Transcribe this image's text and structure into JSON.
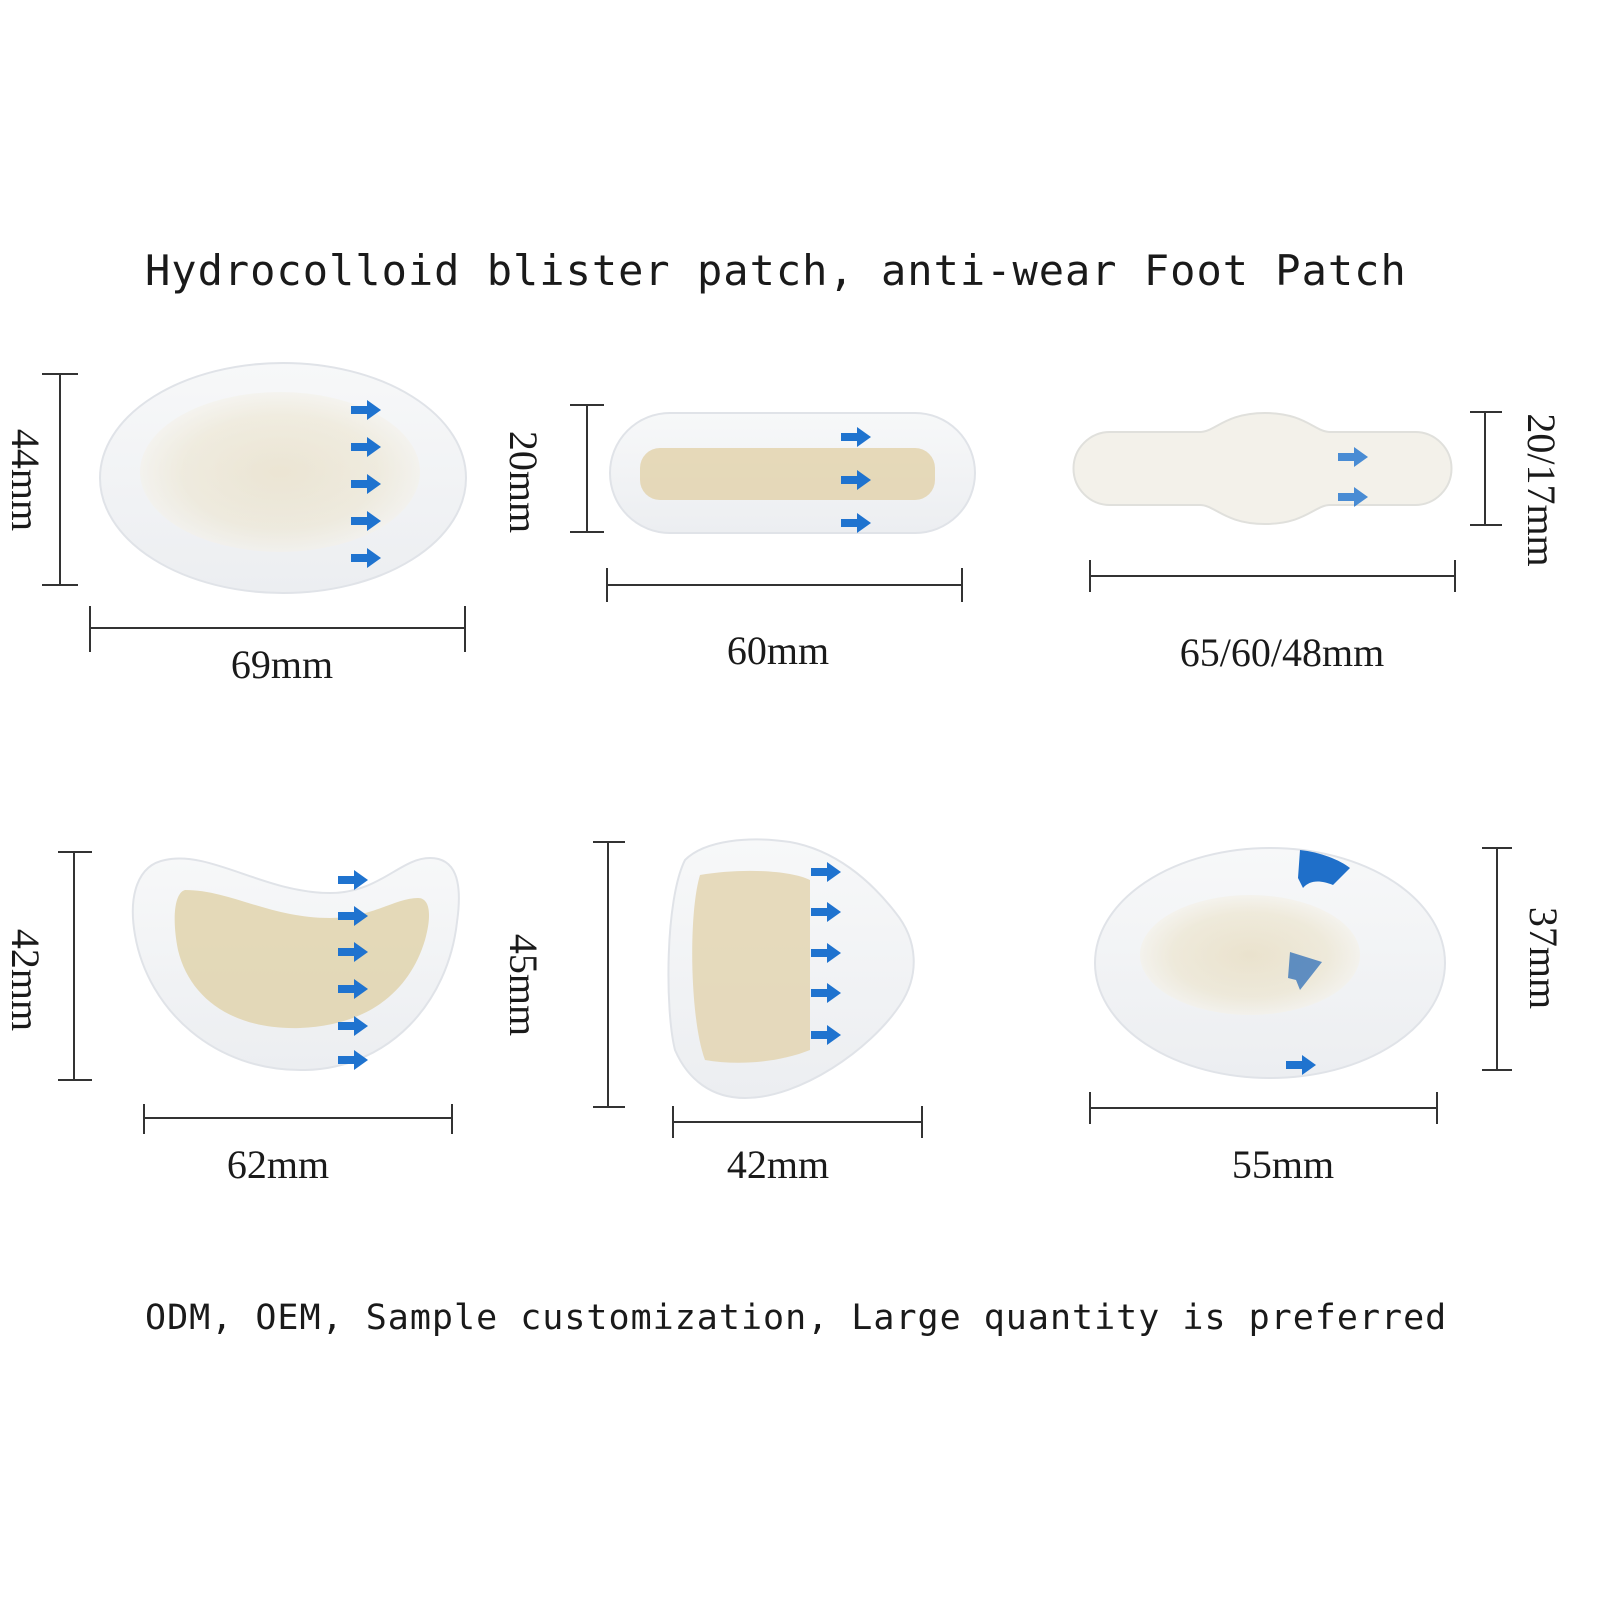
{
  "title": "Hydrocolloid blister patch, anti-wear Foot Patch",
  "footer": "ODM, OEM, Sample customization, Large quantity is preferred",
  "patches": [
    {
      "shape": "oval-large",
      "width_label": "69mm",
      "height_label": "44mm"
    },
    {
      "shape": "strip",
      "width_label": "60mm",
      "height_label": "20mm"
    },
    {
      "shape": "toe-strip",
      "width_label": "65/60/48mm",
      "height_label": "20/17mm"
    },
    {
      "shape": "heel-crescent",
      "width_label": "62mm",
      "height_label": "42mm"
    },
    {
      "shape": "heel-cup",
      "width_label": "42mm",
      "height_label": "45mm"
    },
    {
      "shape": "oval-small",
      "width_label": "55mm",
      "height_label": "37mm"
    }
  ],
  "colors": {
    "text": "#1a1a1a",
    "backing": "#f2f3f5",
    "gel": "#e7dcc0",
    "arrow": "#1f73cf"
  },
  "icons": [
    "arrow-right-icon"
  ]
}
